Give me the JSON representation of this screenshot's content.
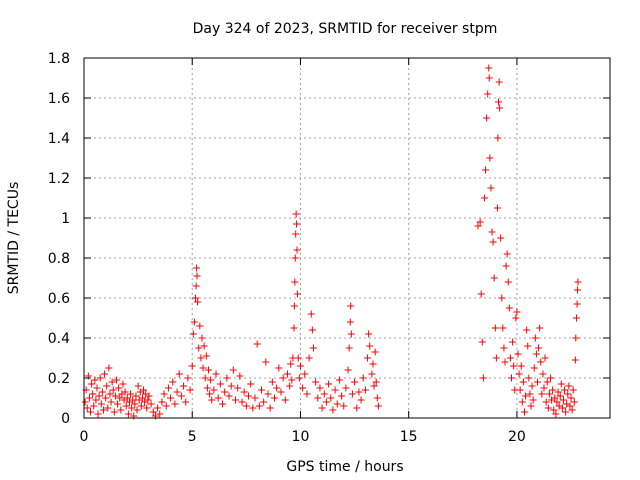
{
  "chart_data": {
    "type": "scatter",
    "title": "Day 324 of 2023, SRMTID for receiver stpm",
    "xlabel": "GPS time / hours",
    "ylabel": "SRMTID / TECUs",
    "xlim": [
      0,
      24.3
    ],
    "ylim": [
      0,
      1.8
    ],
    "x_ticks": [
      0,
      5,
      10,
      15,
      20
    ],
    "x_tick_labels": [
      "0",
      "5",
      "10",
      "15",
      "20"
    ],
    "y_ticks": [
      0,
      0.2,
      0.4,
      0.6,
      0.8,
      1,
      1.2,
      1.4,
      1.6,
      1.8
    ],
    "y_tick_labels": [
      "0",
      "0.2",
      "0.4",
      "0.6",
      "0.8",
      "1",
      "1.2",
      "1.4",
      "1.6",
      "1.8"
    ],
    "grid": true,
    "marker": "+",
    "series": [
      {
        "name": "SRMTID",
        "color": "#ff0000",
        "points": [
          [
            0.05,
            0.08
          ],
          [
            0.1,
            0.14
          ],
          [
            0.15,
            0.05
          ],
          [
            0.2,
            0.21
          ],
          [
            0.25,
            0.1
          ],
          [
            0.3,
            0.03
          ],
          [
            0.35,
            0.17
          ],
          [
            0.4,
            0.12
          ],
          [
            0.45,
            0.06
          ],
          [
            0.5,
            0.19
          ],
          [
            0.55,
            0.09
          ],
          [
            0.6,
            0.15
          ],
          [
            0.65,
            0.02
          ],
          [
            0.7,
            0.11
          ],
          [
            0.75,
            0.2
          ],
          [
            0.8,
            0.07
          ],
          [
            0.85,
            0.13
          ],
          [
            0.9,
            0.04
          ],
          [
            0.95,
            0.22
          ],
          [
            1.0,
            0.1
          ],
          [
            1.05,
            0.16
          ],
          [
            1.1,
            0.05
          ],
          [
            1.15,
            0.25
          ],
          [
            1.2,
            0.12
          ],
          [
            1.25,
            0.08
          ],
          [
            1.3,
            0.18
          ],
          [
            1.35,
            0.14
          ],
          [
            1.4,
            0.03
          ],
          [
            1.45,
            0.11
          ],
          [
            1.5,
            0.19
          ],
          [
            1.55,
            0.07
          ],
          [
            1.6,
            0.15
          ],
          [
            1.65,
            0.1
          ],
          [
            1.7,
            0.04
          ],
          [
            1.75,
            0.12
          ],
          [
            1.8,
            0.17
          ],
          [
            1.85,
            0.09
          ],
          [
            1.9,
            0.13
          ],
          [
            1.95,
            0.06
          ],
          [
            2.0,
            0.1
          ],
          [
            2.05,
            0.02
          ],
          [
            2.1,
            0.08
          ],
          [
            2.15,
            0.12
          ],
          [
            2.2,
            0.05
          ],
          [
            2.25,
            0.09
          ],
          [
            2.3,
            0.01
          ],
          [
            2.35,
            0.07
          ],
          [
            2.4,
            0.11
          ],
          [
            2.45,
            0.04
          ],
          [
            2.5,
            0.16
          ],
          [
            2.55,
            0.09
          ],
          [
            2.6,
            0.13
          ],
          [
            2.65,
            0.06
          ],
          [
            2.7,
            0.1
          ],
          [
            2.75,
            0.14
          ],
          [
            2.8,
            0.08
          ],
          [
            2.85,
            0.12
          ],
          [
            2.9,
            0.05
          ],
          [
            2.95,
            0.09
          ],
          [
            3.0,
            0.11
          ],
          [
            3.1,
            0.07
          ],
          [
            3.2,
            0.03
          ],
          [
            3.3,
            0.01
          ],
          [
            3.4,
            0.05
          ],
          [
            3.5,
            0.02
          ],
          [
            3.6,
            0.08
          ],
          [
            3.7,
            0.12
          ],
          [
            3.8,
            0.06
          ],
          [
            3.9,
            0.15
          ],
          [
            4.0,
            0.1
          ],
          [
            4.1,
            0.18
          ],
          [
            4.2,
            0.07
          ],
          [
            4.3,
            0.13
          ],
          [
            4.4,
            0.22
          ],
          [
            4.5,
            0.11
          ],
          [
            4.6,
            0.16
          ],
          [
            4.7,
            0.08
          ],
          [
            4.8,
            0.2
          ],
          [
            4.9,
            0.14
          ],
          [
            5.0,
            0.26
          ],
          [
            5.05,
            0.42
          ],
          [
            5.1,
            0.48
          ],
          [
            5.15,
            0.6
          ],
          [
            5.18,
            0.66
          ],
          [
            5.2,
            0.75
          ],
          [
            5.22,
            0.71
          ],
          [
            5.25,
            0.58
          ],
          [
            5.3,
            0.35
          ],
          [
            5.35,
            0.46
          ],
          [
            5.4,
            0.3
          ],
          [
            5.45,
            0.4
          ],
          [
            5.5,
            0.25
          ],
          [
            5.55,
            0.36
          ],
          [
            5.6,
            0.2
          ],
          [
            5.65,
            0.31
          ],
          [
            5.7,
            0.15
          ],
          [
            5.75,
            0.24
          ],
          [
            5.8,
            0.12
          ],
          [
            5.85,
            0.19
          ],
          [
            5.9,
            0.09
          ],
          [
            6.0,
            0.14
          ],
          [
            6.1,
            0.22
          ],
          [
            6.2,
            0.1
          ],
          [
            6.3,
            0.17
          ],
          [
            6.4,
            0.07
          ],
          [
            6.5,
            0.13
          ],
          [
            6.6,
            0.2
          ],
          [
            6.7,
            0.11
          ],
          [
            6.8,
            0.16
          ],
          [
            6.9,
            0.24
          ],
          [
            7.0,
            0.09
          ],
          [
            7.1,
            0.15
          ],
          [
            7.2,
            0.21
          ],
          [
            7.3,
            0.08
          ],
          [
            7.4,
            0.13
          ],
          [
            7.5,
            0.06
          ],
          [
            7.6,
            0.11
          ],
          [
            7.7,
            0.17
          ],
          [
            7.8,
            0.05
          ],
          [
            7.9,
            0.1
          ],
          [
            8.0,
            0.37
          ],
          [
            8.1,
            0.06
          ],
          [
            8.2,
            0.14
          ],
          [
            8.3,
            0.08
          ],
          [
            8.4,
            0.28
          ],
          [
            8.5,
            0.12
          ],
          [
            8.6,
            0.05
          ],
          [
            8.7,
            0.18
          ],
          [
            8.8,
            0.1
          ],
          [
            8.9,
            0.15
          ],
          [
            9.0,
            0.25
          ],
          [
            9.1,
            0.13
          ],
          [
            9.2,
            0.2
          ],
          [
            9.3,
            0.09
          ],
          [
            9.4,
            0.22
          ],
          [
            9.5,
            0.16
          ],
          [
            9.55,
            0.27
          ],
          [
            9.6,
            0.19
          ],
          [
            9.65,
            0.3
          ],
          [
            9.7,
            0.45
          ],
          [
            9.72,
            0.56
          ],
          [
            9.74,
            0.68
          ],
          [
            9.76,
            0.8
          ],
          [
            9.78,
            0.92
          ],
          [
            9.8,
            1.02
          ],
          [
            9.82,
            0.97
          ],
          [
            9.84,
            0.84
          ],
          [
            9.86,
            0.62
          ],
          [
            9.9,
            0.3
          ],
          [
            9.95,
            0.2
          ],
          [
            10.0,
            0.26
          ],
          [
            10.1,
            0.15
          ],
          [
            10.2,
            0.22
          ],
          [
            10.3,
            0.12
          ],
          [
            10.4,
            0.3
          ],
          [
            10.5,
            0.52
          ],
          [
            10.55,
            0.44
          ],
          [
            10.6,
            0.35
          ],
          [
            10.7,
            0.18
          ],
          [
            10.8,
            0.1
          ],
          [
            10.9,
            0.15
          ],
          [
            11.0,
            0.05
          ],
          [
            11.1,
            0.12
          ],
          [
            11.2,
            0.08
          ],
          [
            11.3,
            0.17
          ],
          [
            11.4,
            0.1
          ],
          [
            11.5,
            0.04
          ],
          [
            11.6,
            0.14
          ],
          [
            11.7,
            0.07
          ],
          [
            11.8,
            0.19
          ],
          [
            11.9,
            0.11
          ],
          [
            12.0,
            0.06
          ],
          [
            12.1,
            0.15
          ],
          [
            12.2,
            0.24
          ],
          [
            12.25,
            0.35
          ],
          [
            12.3,
            0.48
          ],
          [
            12.32,
            0.56
          ],
          [
            12.35,
            0.42
          ],
          [
            12.4,
            0.12
          ],
          [
            12.5,
            0.18
          ],
          [
            12.6,
            0.05
          ],
          [
            12.7,
            0.13
          ],
          [
            12.8,
            0.09
          ],
          [
            12.9,
            0.2
          ],
          [
            13.0,
            0.14
          ],
          [
            13.1,
            0.3
          ],
          [
            13.15,
            0.42
          ],
          [
            13.2,
            0.36
          ],
          [
            13.3,
            0.22
          ],
          [
            13.35,
            0.27
          ],
          [
            13.4,
            0.16
          ],
          [
            13.45,
            0.33
          ],
          [
            13.5,
            0.18
          ],
          [
            13.55,
            0.1
          ],
          [
            13.6,
            0.06
          ],
          [
            18.2,
            0.96
          ],
          [
            18.3,
            0.98
          ],
          [
            18.35,
            0.62
          ],
          [
            18.4,
            0.38
          ],
          [
            18.45,
            0.2
          ],
          [
            18.5,
            1.1
          ],
          [
            18.55,
            1.24
          ],
          [
            18.6,
            1.5
          ],
          [
            18.65,
            1.62
          ],
          [
            18.7,
            1.75
          ],
          [
            18.72,
            1.7
          ],
          [
            18.75,
            1.3
          ],
          [
            18.8,
            1.15
          ],
          [
            18.85,
            0.93
          ],
          [
            18.9,
            0.88
          ],
          [
            18.95,
            0.7
          ],
          [
            19.0,
            0.45
          ],
          [
            19.05,
            0.3
          ],
          [
            19.1,
            1.05
          ],
          [
            19.12,
            1.4
          ],
          [
            19.15,
            1.58
          ],
          [
            19.18,
            1.68
          ],
          [
            19.2,
            1.55
          ],
          [
            19.25,
            0.9
          ],
          [
            19.3,
            0.6
          ],
          [
            19.35,
            0.45
          ],
          [
            19.4,
            0.35
          ],
          [
            19.45,
            0.28
          ],
          [
            19.5,
            0.76
          ],
          [
            19.55,
            0.82
          ],
          [
            19.6,
            0.68
          ],
          [
            19.65,
            0.55
          ],
          [
            19.7,
            0.3
          ],
          [
            19.75,
            0.2
          ],
          [
            19.8,
            0.38
          ],
          [
            19.85,
            0.26
          ],
          [
            19.9,
            0.14
          ],
          [
            19.95,
            0.5
          ],
          [
            20.0,
            0.53
          ],
          [
            20.05,
            0.32
          ],
          [
            20.1,
            0.22
          ],
          [
            20.15,
            0.14
          ],
          [
            20.2,
            0.26
          ],
          [
            20.25,
            0.08
          ],
          [
            20.3,
            0.18
          ],
          [
            20.35,
            0.03
          ],
          [
            20.4,
            0.11
          ],
          [
            20.45,
            0.44
          ],
          [
            20.5,
            0.36
          ],
          [
            20.55,
            0.2
          ],
          [
            20.6,
            0.12
          ],
          [
            20.65,
            0.06
          ],
          [
            20.7,
            0.16
          ],
          [
            20.75,
            0.09
          ],
          [
            20.8,
            0.25
          ],
          [
            20.85,
            0.4
          ],
          [
            20.9,
            0.32
          ],
          [
            20.95,
            0.18
          ],
          [
            21.0,
            0.35
          ],
          [
            21.05,
            0.45
          ],
          [
            21.1,
            0.28
          ],
          [
            21.15,
            0.12
          ],
          [
            21.2,
            0.22
          ],
          [
            21.25,
            0.15
          ],
          [
            21.3,
            0.3
          ],
          [
            21.35,
            0.08
          ],
          [
            21.4,
            0.18
          ],
          [
            21.45,
            0.05
          ],
          [
            21.5,
            0.12
          ],
          [
            21.55,
            0.2
          ],
          [
            21.6,
            0.09
          ],
          [
            21.65,
            0.14
          ],
          [
            21.7,
            0.04
          ],
          [
            21.75,
            0.1
          ],
          [
            21.8,
            0.02
          ],
          [
            21.85,
            0.08
          ],
          [
            21.9,
            0.13
          ],
          [
            21.95,
            0.06
          ],
          [
            22.0,
            0.11
          ],
          [
            22.05,
            0.17
          ],
          [
            22.1,
            0.05
          ],
          [
            22.15,
            0.09
          ],
          [
            22.2,
            0.14
          ],
          [
            22.25,
            0.03
          ],
          [
            22.3,
            0.07
          ],
          [
            22.35,
            0.12
          ],
          [
            22.4,
            0.16
          ],
          [
            22.45,
            0.06
          ],
          [
            22.5,
            0.1
          ],
          [
            22.55,
            0.04
          ],
          [
            22.6,
            0.14
          ],
          [
            22.65,
            0.08
          ],
          [
            22.7,
            0.29
          ],
          [
            22.72,
            0.4
          ],
          [
            22.75,
            0.5
          ],
          [
            22.78,
            0.57
          ],
          [
            22.8,
            0.64
          ],
          [
            22.82,
            0.68
          ]
        ]
      }
    ]
  }
}
